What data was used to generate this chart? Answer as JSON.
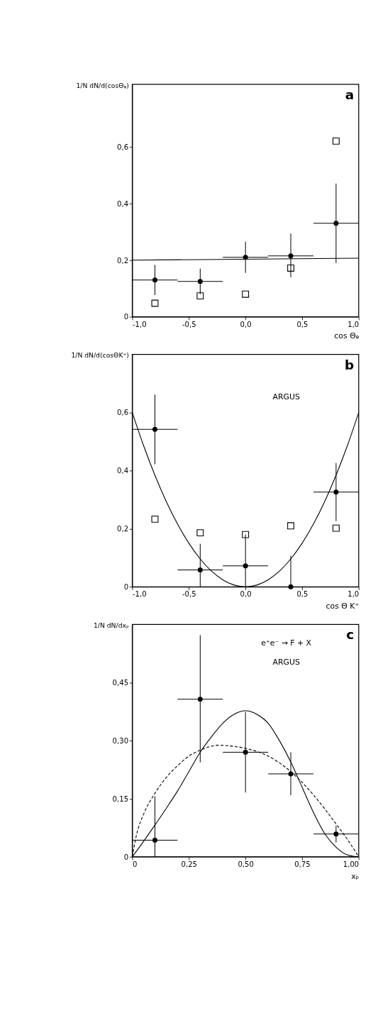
{
  "chart_data": [
    {
      "type": "scatter",
      "xlabel": "cos Θᵩ",
      "ylabel": "1/N dN/d(cosΘᵩ)",
      "annotations": [
        "a"
      ],
      "xlim": [
        -1.0,
        1.0
      ],
      "xticks": [
        {
          "value": -1.0,
          "label": "-1,0"
        },
        {
          "value": -0.5,
          "label": "-0,5"
        },
        {
          "value": 0.0,
          "label": "0,0"
        },
        {
          "value": 0.5,
          "label": "0,5"
        },
        {
          "value": 1.0,
          "label": "1,0"
        }
      ],
      "ylim": [
        0,
        0.82
      ],
      "yticks": [
        0,
        {
          "value": 0.2,
          "label": "0,2"
        },
        {
          "value": 0.4,
          "label": "0,4"
        },
        {
          "value": 0.6,
          "label": "0,6"
        }
      ],
      "grid": false,
      "series": [
        {
          "type": "line",
          "color": "#000000",
          "line_style": "solid",
          "x": [
            -1.0,
            1.0
          ],
          "values": [
            0.2,
            0.207
          ]
        },
        {
          "type": "scatter",
          "color": "#000000",
          "marker": "square",
          "x": [
            -0.8,
            -0.4,
            0.0,
            0.4,
            0.8
          ],
          "values": [
            0.048,
            0.074,
            0.08,
            0.172,
            0.62
          ]
        },
        {
          "color": "#000000",
          "marker": "circle",
          "x": [
            -0.8,
            -0.4,
            0.0,
            0.4,
            0.8
          ],
          "values": [
            0.13,
            0.125,
            0.21,
            0.215,
            0.33
          ],
          "errors": [
            0.053,
            0.045,
            0.055,
            [
              0.14,
              0.294
            ],
            [
              0.19,
              0.47
            ]
          ],
          "xerrors": [
            0.2,
            0.2,
            0.2,
            0.2,
            0.2
          ]
        }
      ]
    },
    {
      "type": "scatter",
      "xlabel": "cos Θ K⁺",
      "ylabel": "1/N dN/d(cosΘK⁺)",
      "annotations": [
        "b",
        "ARGUS"
      ],
      "xlim": [
        -1.0,
        1.0
      ],
      "xticks": [
        {
          "value": -1.0,
          "label": "-1,0"
        },
        {
          "value": -0.5,
          "label": "-0,5"
        },
        {
          "value": 0.0,
          "label": "0,0"
        },
        {
          "value": 0.5,
          "label": "0,5"
        },
        {
          "value": 1.0,
          "label": "1,0"
        }
      ],
      "ylim": [
        0,
        0.8
      ],
      "yticks": [
        0,
        {
          "value": 0.2,
          "label": "0,2"
        },
        {
          "value": 0.4,
          "label": "0,4"
        },
        {
          "value": 0.6,
          "label": "0,6"
        }
      ],
      "grid": false,
      "series": [
        {
          "type": "line",
          "color": "#000000",
          "line_style": "solid",
          "x": [
            -1.0,
            -0.9,
            -0.8,
            -0.7,
            -0.6,
            -0.5,
            -0.4,
            -0.3,
            -0.2,
            -0.1,
            0.0,
            0.1,
            0.2,
            0.3,
            0.4,
            0.5,
            0.6,
            0.7,
            0.8,
            0.9,
            1.0
          ],
          "values": [
            0.6,
            0.486,
            0.384,
            0.294,
            0.216,
            0.15,
            0.096,
            0.054,
            0.024,
            0.006,
            0.0,
            0.006,
            0.024,
            0.054,
            0.096,
            0.15,
            0.216,
            0.294,
            0.384,
            0.486,
            0.6
          ]
        },
        {
          "type": "scatter",
          "color": "#000000",
          "marker": "square",
          "x": [
            -0.8,
            -0.4,
            0.0,
            0.4,
            0.8
          ],
          "values": [
            0.233,
            0.186,
            0.18,
            0.21,
            0.202
          ]
        },
        {
          "color": "#000000",
          "marker": "circle",
          "x": [
            -0.8,
            -0.4,
            0.0,
            0.4,
            0.8
          ],
          "values": [
            0.542,
            0.058,
            0.072,
            0.0,
            0.326
          ],
          "errors": [
            0.12,
            [
              0.0,
              0.148
            ],
            [
              0.0,
              0.18
            ],
            [
              0.0,
              0.107
            ],
            0.1
          ],
          "xerrors": [
            0.2,
            0.2,
            0.2,
            null,
            0.2
          ]
        }
      ]
    },
    {
      "type": "scatter",
      "xlabel": "xₚ",
      "ylabel": "1/N dN/dxₚ",
      "annotations": [
        "c",
        "e⁺e⁻ → F + X",
        "ARGUS"
      ],
      "xlim": [
        0,
        1.0
      ],
      "xticks": [
        0,
        {
          "value": 0.25,
          "label": "0,25"
        },
        {
          "value": 0.5,
          "label": "0,50"
        },
        {
          "value": 0.75,
          "label": "0,75"
        },
        {
          "value": 1.0,
          "label": "1,00"
        }
      ],
      "ylim": [
        0,
        0.6
      ],
      "yticks": [
        0,
        {
          "value": 0.15,
          "label": "0,15"
        },
        {
          "value": 0.3,
          "label": "0,30"
        },
        {
          "value": 0.45,
          "label": "0,45"
        }
      ],
      "grid": false,
      "series": [
        {
          "type": "line",
          "color": "#000000",
          "line_style": "solid",
          "x": [
            0.0,
            0.05,
            0.1,
            0.15,
            0.2,
            0.25,
            0.3,
            0.35,
            0.4,
            0.45,
            0.5,
            0.55,
            0.6,
            0.65,
            0.7,
            0.75,
            0.8,
            0.85,
            0.9,
            0.95,
            1.0
          ],
          "values": [
            0.0,
            0.04,
            0.082,
            0.125,
            0.17,
            0.22,
            0.27,
            0.31,
            0.345,
            0.368,
            0.377,
            0.368,
            0.345,
            0.3,
            0.245,
            0.18,
            0.115,
            0.06,
            0.025,
            0.005,
            0.0
          ]
        },
        {
          "type": "line",
          "color": "#000000",
          "line_style": "dashed",
          "x": [
            0.0,
            0.02,
            0.05,
            0.1,
            0.15,
            0.2,
            0.25,
            0.3,
            0.38,
            0.45,
            0.5,
            0.6,
            0.7,
            0.8,
            0.9,
            0.95,
            1.0
          ],
          "values": [
            0.0,
            0.06,
            0.11,
            0.164,
            0.205,
            0.235,
            0.26,
            0.275,
            0.288,
            0.285,
            0.28,
            0.26,
            0.22,
            0.16,
            0.085,
            0.045,
            0.0
          ]
        },
        {
          "color": "#000000",
          "marker": "circle",
          "x": [
            0.1,
            0.3,
            0.5,
            0.7,
            0.9
          ],
          "values": [
            0.043,
            0.407,
            0.27,
            0.214,
            0.059
          ],
          "errors": [
            [
              0.0,
              0.156
            ],
            [
              0.244,
              0.572
            ],
            [
              0.166,
              0.374
            ],
            [
              0.159,
              0.27
            ],
            [
              0.037,
              0.08
            ]
          ],
          "xerrors": [
            0.1,
            0.1,
            0.1,
            0.1,
            0.1
          ]
        }
      ]
    }
  ]
}
